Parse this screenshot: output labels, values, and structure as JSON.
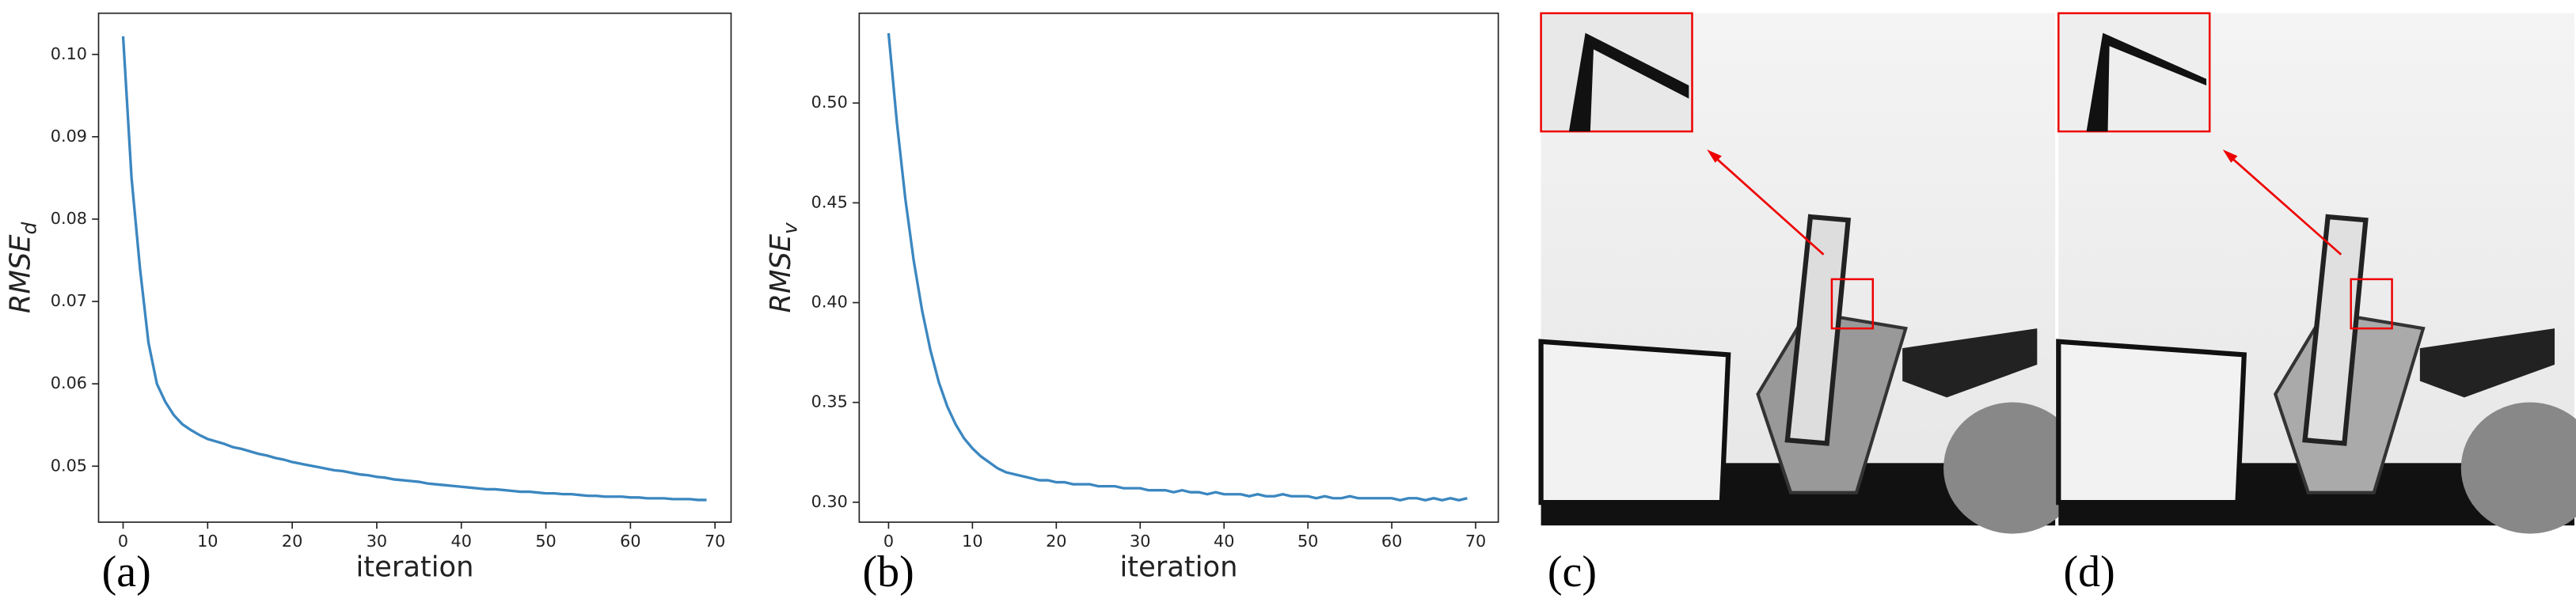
{
  "chart_data": [
    {
      "type": "line",
      "caption": "(a)",
      "x_label": "iteration",
      "y_label": "RMSE",
      "y_label_sub": "d",
      "color": "#3b87c0",
      "x": [
        0,
        1,
        2,
        3,
        4,
        5,
        6,
        7,
        8,
        9,
        10,
        11,
        12,
        13,
        14,
        15,
        16,
        17,
        18,
        19,
        20,
        21,
        22,
        23,
        24,
        25,
        26,
        27,
        28,
        29,
        30,
        31,
        32,
        33,
        34,
        35,
        36,
        37,
        38,
        39,
        40,
        41,
        42,
        43,
        44,
        45,
        46,
        47,
        48,
        49,
        50,
        51,
        52,
        53,
        54,
        55,
        56,
        57,
        58,
        59,
        60,
        61,
        62,
        63,
        64,
        65,
        66,
        67,
        68,
        69
      ],
      "values": [
        0.1022,
        0.085,
        0.074,
        0.065,
        0.06,
        0.0578,
        0.0562,
        0.0551,
        0.0544,
        0.0538,
        0.0533,
        0.053,
        0.0527,
        0.0523,
        0.0521,
        0.0518,
        0.0515,
        0.0513,
        0.051,
        0.0508,
        0.0505,
        0.0503,
        0.0501,
        0.0499,
        0.0497,
        0.0495,
        0.0494,
        0.0492,
        0.049,
        0.0489,
        0.0487,
        0.0486,
        0.0484,
        0.0483,
        0.0482,
        0.0481,
        0.0479,
        0.0478,
        0.0477,
        0.0476,
        0.0475,
        0.0474,
        0.0473,
        0.0472,
        0.0472,
        0.0471,
        0.047,
        0.0469,
        0.0469,
        0.0468,
        0.0467,
        0.0467,
        0.0466,
        0.0466,
        0.0465,
        0.0464,
        0.0464,
        0.0463,
        0.0463,
        0.0463,
        0.0462,
        0.0462,
        0.0461,
        0.0461,
        0.0461,
        0.046,
        0.046,
        0.046,
        0.0459,
        0.0459
      ],
      "xlim": [
        -2.9,
        71.9
      ],
      "xticks": [
        0,
        10,
        20,
        30,
        40,
        50,
        60,
        70
      ],
      "ylim": [
        0.0432,
        0.105
      ],
      "yticks": [
        0.05,
        0.06,
        0.07,
        0.08,
        0.09,
        {
          "value": 0.1,
          "label": "0.10"
        }
      ]
    },
    {
      "type": "line",
      "caption": "(b)",
      "x_label": "iteration",
      "y_label": "RMSE",
      "y_label_sub": "v",
      "color": "#3b87c0",
      "x": [
        0,
        1,
        2,
        3,
        4,
        5,
        6,
        7,
        8,
        9,
        10,
        11,
        12,
        13,
        14,
        15,
        16,
        17,
        18,
        19,
        20,
        21,
        22,
        23,
        24,
        25,
        26,
        27,
        28,
        29,
        30,
        31,
        32,
        33,
        34,
        35,
        36,
        37,
        38,
        39,
        40,
        41,
        42,
        43,
        44,
        45,
        46,
        47,
        48,
        49,
        50,
        51,
        52,
        53,
        54,
        55,
        56,
        57,
        58,
        59,
        60,
        61,
        62,
        63,
        64,
        65,
        66,
        67,
        68,
        69
      ],
      "values": [
        0.535,
        0.49,
        0.452,
        0.421,
        0.396,
        0.376,
        0.36,
        0.348,
        0.339,
        0.332,
        0.327,
        0.323,
        0.32,
        0.317,
        0.315,
        0.314,
        0.313,
        0.312,
        0.311,
        0.311,
        0.31,
        0.31,
        0.309,
        0.309,
        0.309,
        0.308,
        0.308,
        0.308,
        0.307,
        0.307,
        0.307,
        0.306,
        0.306,
        0.306,
        0.305,
        0.306,
        0.305,
        0.305,
        0.304,
        0.305,
        0.304,
        0.304,
        0.304,
        0.303,
        0.304,
        0.303,
        0.303,
        0.304,
        0.303,
        0.303,
        0.303,
        0.302,
        0.303,
        0.302,
        0.302,
        0.303,
        0.302,
        0.302,
        0.302,
        0.302,
        0.302,
        0.301,
        0.302,
        0.302,
        0.301,
        0.302,
        0.301,
        0.302,
        0.301,
        0.302
      ],
      "xlim": [
        -3.5,
        72.7
      ],
      "xticks": [
        0,
        10,
        20,
        30,
        40,
        50,
        60,
        70
      ],
      "ylim": [
        0.29,
        0.545
      ],
      "yticks": [
        {
          "value": 0.3,
          "label": "0.30"
        },
        0.35,
        {
          "value": 0.4,
          "label": "0.40"
        },
        0.45,
        {
          "value": 0.5,
          "label": "0.50"
        }
      ]
    }
  ],
  "images": [
    {
      "caption": "(c)"
    },
    {
      "caption": "(d)"
    }
  ]
}
